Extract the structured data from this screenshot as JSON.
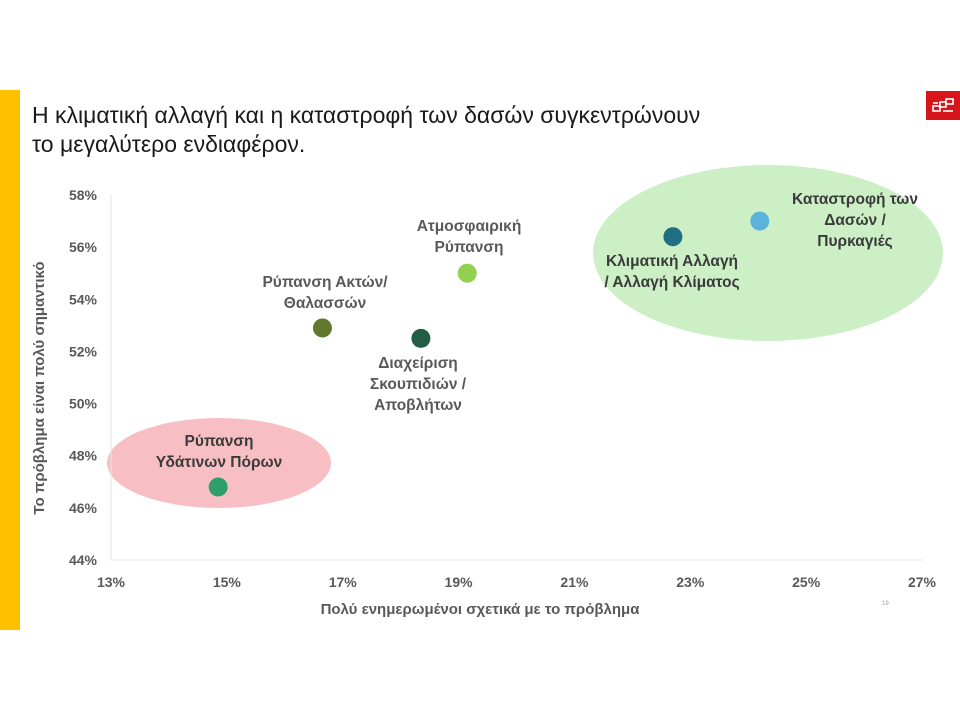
{
  "slide": {
    "title_lines": [
      "Η κλιματική αλλαγή και η καταστροφή των δασών συγκεντρώνουν",
      "το μεγαλύτερο ενδιαφέρον."
    ],
    "page_number": "19",
    "accent_color": "#FFC000",
    "logo_color": "#D7141A",
    "logo_icon": "brand-logo-icon"
  },
  "chart_data": {
    "type": "scatter",
    "title": "",
    "xlabel": "Πολύ ενημερωμένοι σχετικά με το πρόβλημα",
    "ylabel": "Το πρόβλημα είναι πολύ σημαντικό",
    "xlim": [
      13,
      27
    ],
    "ylim": [
      44,
      58
    ],
    "x_ticks": [
      "13%",
      "15%",
      "17%",
      "19%",
      "21%",
      "23%",
      "25%",
      "27%"
    ],
    "y_ticks": [
      "44%",
      "46%",
      "48%",
      "50%",
      "52%",
      "54%",
      "56%",
      "58%"
    ],
    "grid": false,
    "points": [
      {
        "label_lines": [
          "Καταστροφή των",
          "Δασών /",
          "Πυρκαγιές"
        ],
        "x": 24.2,
        "y": 57.0,
        "color": "#5BB3DB"
      },
      {
        "label_lines": [
          "Κλιματική Αλλαγή",
          "/ Αλλαγή Κλίματος"
        ],
        "x": 22.7,
        "y": 56.4,
        "color": "#1F6E84"
      },
      {
        "label_lines": [
          "Ατμοσφαιρική",
          "Ρύπανση"
        ],
        "x": 19.15,
        "y": 55.0,
        "color": "#92D050"
      },
      {
        "label_lines": [
          "Ρύπανση Ακτών/",
          "Θαλασσών"
        ],
        "x": 16.65,
        "y": 52.9,
        "color": "#5F7A2C"
      },
      {
        "label_lines": [
          "Διαχείριση",
          "Σκουπιδιών /",
          "Αποβλήτων"
        ],
        "x": 18.35,
        "y": 52.5,
        "color": "#225E45"
      },
      {
        "label_lines": [
          "Ρύπανση",
          "Υδάτινων Πόρων"
        ],
        "x": 14.85,
        "y": 46.8,
        "color": "#2E9E6B"
      }
    ],
    "highlights": [
      {
        "group": "top-right",
        "color": "#CDEFC6"
      },
      {
        "group": "bottom-left",
        "color": "#F7BFC3"
      }
    ]
  }
}
